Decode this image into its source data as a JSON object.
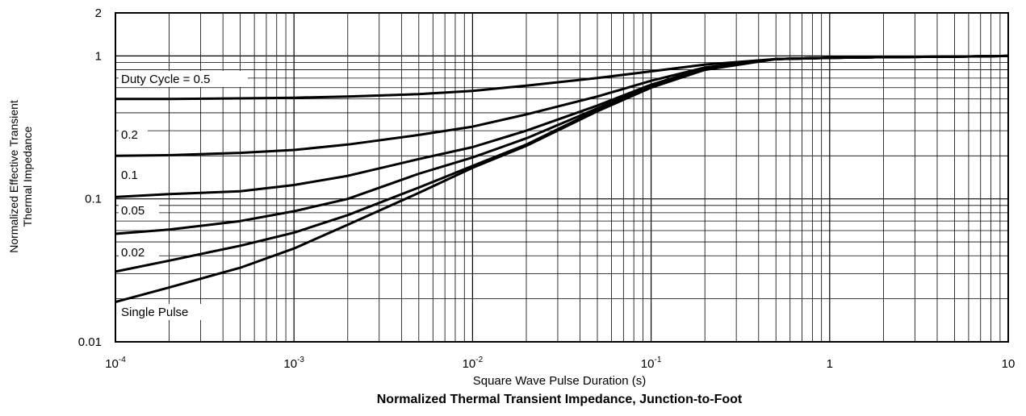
{
  "chart_data": {
    "type": "line",
    "title": "Normalized Thermal Transient Impedance, Junction-to-Foot",
    "xlabel": "Square Wave Pulse Duration (s)",
    "ylabel_lines": [
      "Normalized Effective Transient",
      "Thermal Impedance"
    ],
    "xscale": "log",
    "yscale": "log",
    "xlim": [
      0.0001,
      10
    ],
    "ylim": [
      0.01,
      2
    ],
    "grid": true,
    "x_tick_labels": [
      {
        "base": "10",
        "exp": "-4"
      },
      {
        "base": "10",
        "exp": "-3"
      },
      {
        "base": "10",
        "exp": "-2"
      },
      {
        "base": "10",
        "exp": "-1"
      },
      {
        "base": "1",
        "exp": ""
      },
      {
        "base": "10",
        "exp": ""
      }
    ],
    "y_tick_labels": [
      "2",
      "1",
      "0.1",
      "0.01"
    ],
    "series": [
      {
        "name": "Duty Cycle = 0.5",
        "x": [
          0.0001,
          0.0002,
          0.0005,
          0.001,
          0.002,
          0.005,
          0.01,
          0.02,
          0.05,
          0.1,
          0.2,
          0.5,
          1,
          2,
          5,
          10
        ],
        "y": [
          0.5,
          0.5,
          0.505,
          0.51,
          0.52,
          0.54,
          0.57,
          0.62,
          0.7,
          0.78,
          0.87,
          0.95,
          0.97,
          0.98,
          0.99,
          1.0
        ]
      },
      {
        "name": "0.2",
        "x": [
          0.0001,
          0.0002,
          0.0005,
          0.001,
          0.002,
          0.005,
          0.01,
          0.02,
          0.05,
          0.1,
          0.2,
          0.5,
          1,
          2,
          5,
          10
        ],
        "y": [
          0.2,
          0.202,
          0.21,
          0.22,
          0.24,
          0.28,
          0.32,
          0.39,
          0.52,
          0.67,
          0.83,
          0.95,
          0.97,
          0.98,
          0.99,
          1.0
        ]
      },
      {
        "name": "0.1",
        "x": [
          0.0001,
          0.0002,
          0.0005,
          0.001,
          0.002,
          0.005,
          0.01,
          0.02,
          0.05,
          0.1,
          0.2,
          0.5,
          1,
          2,
          5,
          10
        ],
        "y": [
          0.103,
          0.108,
          0.113,
          0.125,
          0.145,
          0.19,
          0.23,
          0.3,
          0.45,
          0.63,
          0.82,
          0.95,
          0.97,
          0.98,
          0.99,
          1.0
        ]
      },
      {
        "name": "0.05",
        "x": [
          0.0001,
          0.0002,
          0.0005,
          0.001,
          0.002,
          0.005,
          0.01,
          0.02,
          0.05,
          0.1,
          0.2,
          0.5,
          1,
          2,
          5,
          10
        ],
        "y": [
          0.057,
          0.061,
          0.07,
          0.082,
          0.1,
          0.15,
          0.195,
          0.265,
          0.43,
          0.62,
          0.82,
          0.95,
          0.97,
          0.98,
          0.99,
          1.0
        ]
      },
      {
        "name": "0.02",
        "x": [
          0.0001,
          0.0002,
          0.0005,
          0.001,
          0.002,
          0.005,
          0.01,
          0.02,
          0.05,
          0.1,
          0.2,
          0.5,
          1,
          2,
          5,
          10
        ],
        "y": [
          0.031,
          0.037,
          0.047,
          0.058,
          0.077,
          0.12,
          0.17,
          0.24,
          0.42,
          0.61,
          0.81,
          0.95,
          0.97,
          0.98,
          0.99,
          1.0
        ]
      },
      {
        "name": "Single Pulse",
        "x": [
          0.0001,
          0.0002,
          0.0005,
          0.001,
          0.002,
          0.005,
          0.01,
          0.02,
          0.05,
          0.1,
          0.2,
          0.5,
          1,
          2,
          5,
          10
        ],
        "y": [
          0.019,
          0.024,
          0.033,
          0.045,
          0.066,
          0.11,
          0.165,
          0.235,
          0.41,
          0.6,
          0.8,
          0.95,
          0.97,
          0.98,
          0.99,
          1.0
        ]
      }
    ]
  }
}
